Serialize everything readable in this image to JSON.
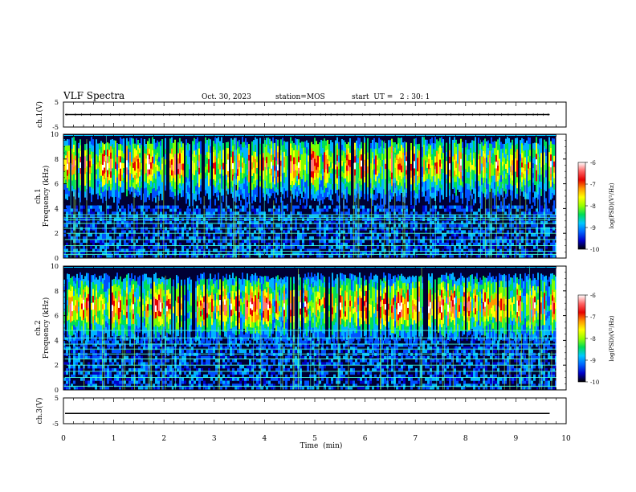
{
  "chart_data": {
    "type": "heatmap",
    "header": {
      "title": "VLF Spectra",
      "date": "Oct. 30, 2023",
      "station": "station=MOS",
      "start_ut": "start  UT =   2 : 30: 1"
    },
    "xlabel": "Time  (min)",
    "xlim": [
      0,
      10
    ],
    "x_ticks": [
      "0",
      "1",
      "2",
      "3",
      "4",
      "5",
      "6",
      "7",
      "8",
      "9",
      "10"
    ],
    "data_extent_min": 9.8,
    "panels": [
      {
        "kind": "waveform",
        "ylabel": "ch.1(V)",
        "ylim": [
          -5,
          5
        ],
        "y_ticks": [
          "5",
          "-5"
        ],
        "level": 0
      },
      {
        "kind": "spectrogram",
        "ylabel_channel": "ch.1",
        "ylabel": "Frequency  (kHz)",
        "ylim": [
          0,
          10
        ],
        "y_ticks": [
          "0",
          "2",
          "4",
          "6",
          "8",
          "10"
        ],
        "emission_band_khz": [
          5.0,
          9.8
        ],
        "emission_peak_khz": 7.5,
        "interference_lines_khz": [
          0.3,
          0.55,
          1.0,
          1.5,
          2.0,
          2.4,
          2.8,
          3.1,
          3.3,
          3.5
        ]
      },
      {
        "kind": "spectrogram",
        "ylabel_channel": "ch.2",
        "ylabel": "Frequency  (kHz)",
        "ylim": [
          0,
          10
        ],
        "y_ticks": [
          "0",
          "2",
          "4",
          "6",
          "8",
          "10"
        ],
        "emission_band_khz": [
          4.5,
          9.5
        ],
        "emission_peak_khz": 6.8,
        "interference_lines_khz": [
          0.3,
          1.0,
          1.5,
          2.0,
          2.5,
          2.9,
          3.3,
          3.7,
          4.2,
          4.8
        ]
      },
      {
        "kind": "waveform",
        "ylabel": "ch.3(V)",
        "ylim": [
          -5,
          5
        ],
        "y_ticks": [
          "5",
          "-5"
        ],
        "level": -1
      }
    ],
    "colorbar": {
      "label": "log(PSD)(V²/Hz)",
      "range": [
        -10,
        -6
      ],
      "ticks": [
        "-6",
        "-7",
        "-8",
        "-9",
        "-10"
      ]
    },
    "colors": {
      "background": "#000033",
      "low": "#0000c8",
      "mid": "#00dd55",
      "high": "#ffff00",
      "peak": "#e60000",
      "max": "#ffffff",
      "interference": "#40ffd0"
    }
  }
}
